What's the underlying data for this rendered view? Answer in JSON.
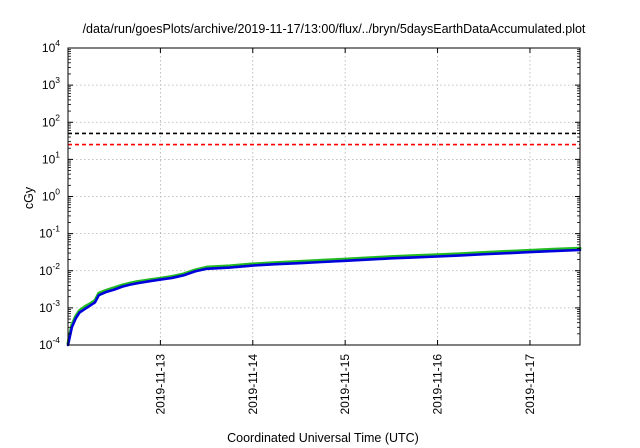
{
  "chart_data": {
    "type": "line",
    "title": "/data/run/goesPlots/archive/2019-11-17/13:00/flux/../bryn/5daysEarthDataAccumulated.plot",
    "xlabel": "Coordinated Universal Time (UTC)",
    "ylabel": "cGy",
    "x_start": "2019-11-12T00:00",
    "x_end": "2019-11-17T13:00",
    "ylim": [
      0.0001,
      10000
    ],
    "yscale": "log",
    "grid": true,
    "legend": "none",
    "x_ticks": [
      "2019-11-13",
      "2019-11-14",
      "2019-11-15",
      "2019-11-16",
      "2019-11-17"
    ],
    "y_ticks": [
      {
        "value": 0.0001,
        "base": "10",
        "exp": "-4"
      },
      {
        "value": 0.001,
        "base": "10",
        "exp": "-3"
      },
      {
        "value": 0.01,
        "base": "10",
        "exp": "-2"
      },
      {
        "value": 0.1,
        "base": "10",
        "exp": "-1"
      },
      {
        "value": 1,
        "base": "10",
        "exp": "0"
      },
      {
        "value": 10,
        "base": "10",
        "exp": "1"
      },
      {
        "value": 100,
        "base": "10",
        "exp": "2"
      },
      {
        "value": 1000,
        "base": "10",
        "exp": "3"
      },
      {
        "value": 10000,
        "base": "10",
        "exp": "4"
      }
    ],
    "thresholds": [
      {
        "value": 50,
        "color": "#000000",
        "dash": "dashed"
      },
      {
        "value": 25,
        "color": "#ff0000",
        "dash": "dashed"
      }
    ],
    "series": [
      {
        "color": "#22bb22",
        "x": [
          "2019-11-12T00:00",
          "2019-11-12T00:15",
          "2019-11-12T01:00",
          "2019-11-12T02:00",
          "2019-11-12T03:00",
          "2019-11-12T04:30",
          "2019-11-12T06:00",
          "2019-11-12T07:00",
          "2019-11-12T08:00",
          "2019-11-12T10:00",
          "2019-11-12T12:00",
          "2019-11-12T14:00",
          "2019-11-12T16:00",
          "2019-11-12T18:00",
          "2019-11-12T21:00",
          "2019-11-13T00:00",
          "2019-11-13T03:00",
          "2019-11-13T06:00",
          "2019-11-13T09:00",
          "2019-11-13T12:00",
          "2019-11-13T18:00",
          "2019-11-14T00:00",
          "2019-11-14T06:00",
          "2019-11-14T12:00",
          "2019-11-14T18:00",
          "2019-11-15T00:00",
          "2019-11-15T06:00",
          "2019-11-15T12:00",
          "2019-11-15T18:00",
          "2019-11-16T00:00",
          "2019-11-16T06:00",
          "2019-11-16T12:00",
          "2019-11-16T18:00",
          "2019-11-17T00:00",
          "2019-11-17T06:00",
          "2019-11-17T13:00"
        ],
        "y": [
          0.00011,
          0.00015,
          0.00035,
          0.0006,
          0.00085,
          0.0011,
          0.00135,
          0.0016,
          0.0025,
          0.003,
          0.0035,
          0.0041,
          0.0046,
          0.0051,
          0.0057,
          0.0063,
          0.007,
          0.0082,
          0.0105,
          0.0125,
          0.0135,
          0.0153,
          0.0165,
          0.0178,
          0.0192,
          0.0205,
          0.0222,
          0.024,
          0.0255,
          0.027,
          0.0288,
          0.031,
          0.0332,
          0.0355,
          0.0378,
          0.0405
        ]
      },
      {
        "color": "#0000dd",
        "x": [
          "2019-11-12T00:00",
          "2019-11-12T00:15",
          "2019-11-12T01:00",
          "2019-11-12T02:00",
          "2019-11-12T03:00",
          "2019-11-12T04:30",
          "2019-11-12T06:00",
          "2019-11-12T07:00",
          "2019-11-12T08:00",
          "2019-11-12T10:00",
          "2019-11-12T12:00",
          "2019-11-12T14:00",
          "2019-11-12T16:00",
          "2019-11-12T18:00",
          "2019-11-12T21:00",
          "2019-11-13T00:00",
          "2019-11-13T03:00",
          "2019-11-13T06:00",
          "2019-11-13T09:00",
          "2019-11-13T12:00",
          "2019-11-13T18:00",
          "2019-11-14T00:00",
          "2019-11-14T06:00",
          "2019-11-14T12:00",
          "2019-11-14T18:00",
          "2019-11-15T00:00",
          "2019-11-15T06:00",
          "2019-11-15T12:00",
          "2019-11-15T18:00",
          "2019-11-16T00:00",
          "2019-11-16T06:00",
          "2019-11-16T12:00",
          "2019-11-16T18:00",
          "2019-11-17T00:00",
          "2019-11-17T06:00",
          "2019-11-17T13:00"
        ],
        "y": [
          0.0001,
          0.00013,
          0.0003,
          0.00052,
          0.00075,
          0.00095,
          0.0012,
          0.0014,
          0.0022,
          0.0027,
          0.0031,
          0.0037,
          0.0042,
          0.0046,
          0.0052,
          0.0058,
          0.0064,
          0.0075,
          0.0096,
          0.0113,
          0.0122,
          0.0138,
          0.015,
          0.016,
          0.0172,
          0.0185,
          0.02,
          0.0216,
          0.0229,
          0.0242,
          0.0259,
          0.0278,
          0.0297,
          0.0318,
          0.0339,
          0.0362
        ]
      }
    ]
  }
}
